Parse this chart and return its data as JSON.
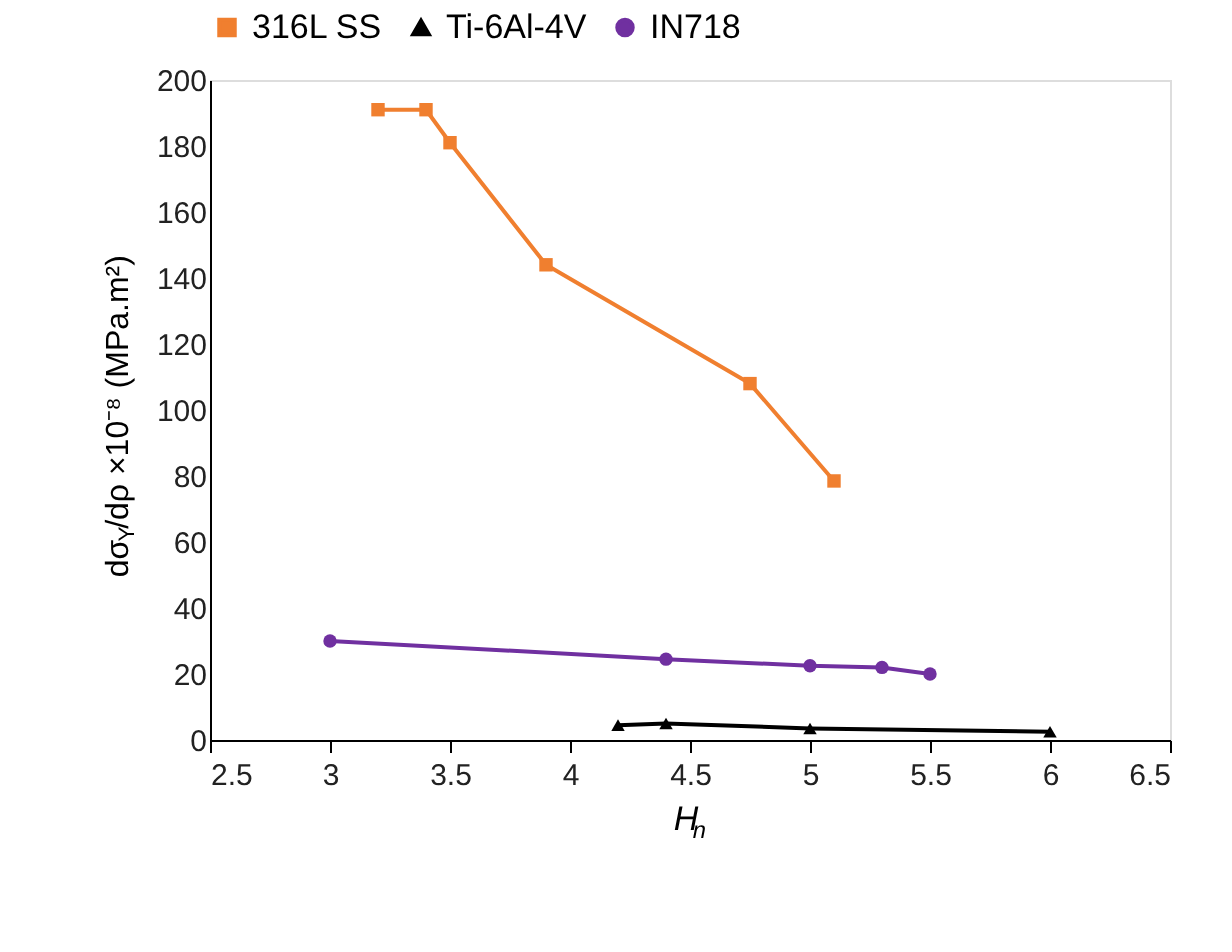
{
  "chart_data": {
    "type": "line",
    "xlabel": "H$_{n}$",
    "ylabel": "dσ$_{Y}$/dρ ×10⁻⁸ (MPa.m²)",
    "xlim": [
      2.5,
      6.5
    ],
    "xticks": [
      2.5,
      3,
      3.5,
      4,
      4.5,
      5,
      5.5,
      6,
      6.5
    ],
    "ylim": [
      0,
      200
    ],
    "yticks": [
      0,
      20,
      40,
      60,
      80,
      100,
      120,
      140,
      160,
      180,
      200
    ],
    "grid": false,
    "legend": "top",
    "series": [
      {
        "name": "316L SS",
        "color": "#f07f2f",
        "marker": "square",
        "x": [
          3.2,
          3.4,
          3.5,
          3.9,
          4.75,
          5.1
        ],
        "values": [
          191,
          191,
          181,
          144,
          108,
          78.5
        ]
      },
      {
        "name": "Ti-6Al-4V",
        "color": "#000000",
        "marker": "triangle",
        "x": [
          4.2,
          4.4,
          5,
          6
        ],
        "values": [
          4.5,
          5,
          3.5,
          2.5
        ]
      },
      {
        "name": "IN718",
        "color": "#7030a0",
        "marker": "circle",
        "x": [
          3,
          4.4,
          5,
          5.3,
          5.5
        ],
        "values": [
          30,
          24.5,
          22.5,
          22,
          20
        ]
      }
    ]
  }
}
